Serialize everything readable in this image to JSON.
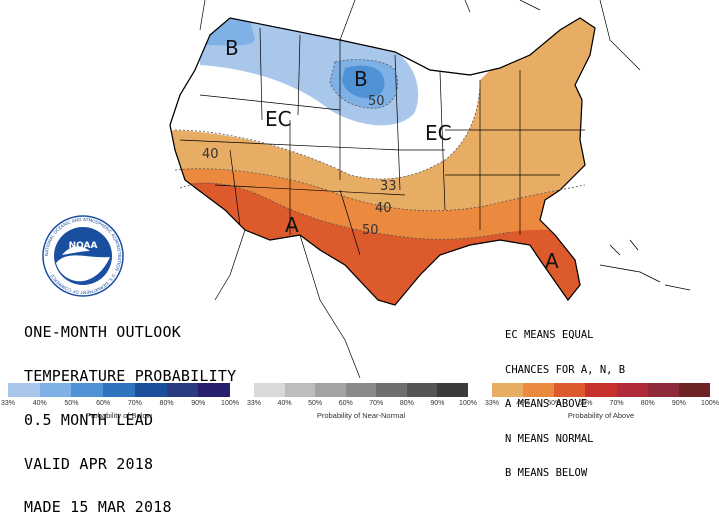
{
  "title_lines": [
    "ONE-MONTH OUTLOOK",
    "TEMPERATURE PROBABILITY",
    "0.5 MONTH LEAD",
    "VALID APR 2018",
    "MADE 15 MAR 2018"
  ],
  "key_lines": [
    "EC MEANS EQUAL",
    "CHANCES FOR A, N, B",
    "A MEANS ABOVE",
    "N MEANS NORMAL",
    "B MEANS BELOW"
  ],
  "map_labels": {
    "below_nw": "B",
    "below_ndak": "B",
    "ec_west": "EC",
    "ec_east": "EC",
    "above_sw": "A",
    "above_fl": "A"
  },
  "contour_labels": {
    "c50_north": "50",
    "c40_west": "40",
    "c33": "33",
    "c40_central": "40",
    "c50_south": "50"
  },
  "legends": [
    {
      "caption": "Probability of Below",
      "ticks": [
        "33%",
        "40%",
        "50%",
        "60%",
        "70%",
        "80%",
        "90%",
        "100%"
      ],
      "colors": [
        "#a9c7ea",
        "#7fb0e6",
        "#4f93d6",
        "#2d73be",
        "#1b4f9a",
        "#2b3b82",
        "#251f6e"
      ]
    },
    {
      "caption": "Probability of Near-Normal",
      "ticks": [
        "33%",
        "40%",
        "50%",
        "60%",
        "70%",
        "80%",
        "90%",
        "100%"
      ],
      "colors": [
        "#d9d9d9",
        "#bdbdbd",
        "#a3a3a3",
        "#8a8a8a",
        "#6f6f6f",
        "#555555",
        "#3b3b3b"
      ]
    },
    {
      "caption": "Probability of Above",
      "ticks": [
        "33%",
        "40%",
        "50%",
        "60%",
        "70%",
        "80%",
        "90%",
        "100%"
      ],
      "colors": [
        "#e8ad65",
        "#eb8a3e",
        "#dc5a2c",
        "#c8322d",
        "#b12a3a",
        "#8e2a3a",
        "#6e2325"
      ]
    }
  ],
  "colors": {
    "below_33": "#a9c7ea",
    "below_40": "#7fb0e6",
    "below_50": "#4f93d6",
    "above_33": "#e8ad65",
    "above_40": "#eb8a3e",
    "above_50": "#dc5a2c",
    "noaa_blue": "#1a4fa0"
  },
  "logo": {
    "text": "NOAA",
    "ring_text": "NATIONAL OCEANIC AND ATMOSPHERIC ADMINISTRATION · U.S. DEPARTMENT OF COMMERCE ·"
  }
}
